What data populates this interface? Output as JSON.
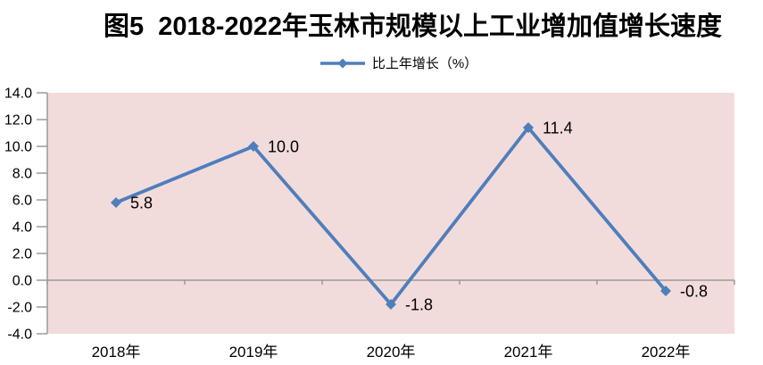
{
  "colors": {
    "series_line": "#4E7EBC",
    "plot_background": "#F2DCDB",
    "axis_line": "#9A9A9A",
    "text": "#000000",
    "page_background": "#FFFFFF"
  },
  "chart_data": {
    "type": "line",
    "title": "图5  2018-2022年玉林市规模以上工业增加值增长速度",
    "categories": [
      "2018年",
      "2019年",
      "2020年",
      "2021年",
      "2022年"
    ],
    "series": [
      {
        "name": "比上年增长（%）",
        "values": [
          5.8,
          10.0,
          -1.8,
          11.4,
          -0.8
        ]
      }
    ],
    "data_labels": [
      "5.8",
      "10.0",
      "-1.8",
      "11.4",
      "-0.8"
    ],
    "xlabel": "",
    "ylabel": "",
    "ylim": [
      -4.0,
      14.0
    ],
    "ytick_step": 2.0,
    "ytick_labels": [
      "14.0",
      "12.0",
      "10.0",
      "8.0",
      "6.0",
      "4.0",
      "2.0",
      "0.0",
      "-2.0",
      "-4.0"
    ],
    "legend_position": "top-center",
    "grid": false,
    "marker": "diamond",
    "category_axis_at_zero": true
  }
}
